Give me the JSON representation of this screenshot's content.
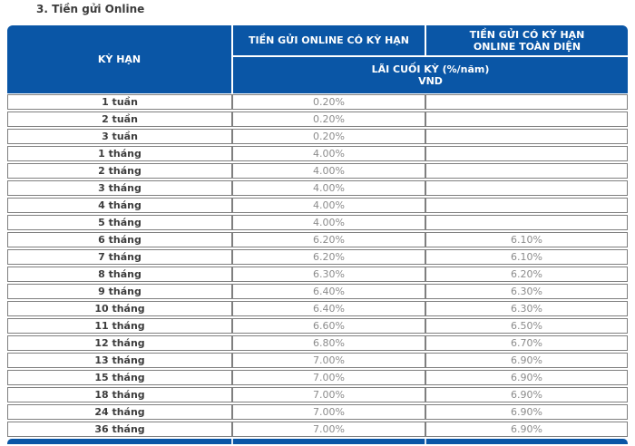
{
  "page_title": "3. Tiền gửi Online",
  "colors": {
    "header_blue": "#0a56a6",
    "border_gray": "#7f7f7f",
    "label_color": "#3d3d3d",
    "value_color": "#8c8c8c",
    "title_color": "#3c3c3c"
  },
  "table": {
    "header": {
      "term": "KỲ HẠN",
      "online_fixed": "TIỀN GỬI ONLINE CÓ KỲ HẠN",
      "toan_dien_line1": "TIỀN GỬI CÓ KỲ HẠN",
      "toan_dien_line2": "ONLINE TOÀN DIỆN",
      "interest_label": "LÃI CUỐI KỲ (%/năm)",
      "currency": "VND"
    },
    "rows": [
      {
        "term": "1 tuần",
        "online": "0.20%",
        "toan_dien": ""
      },
      {
        "term": "2 tuần",
        "online": "0.20%",
        "toan_dien": ""
      },
      {
        "term": "3 tuần",
        "online": "0.20%",
        "toan_dien": ""
      },
      {
        "term": "1 tháng",
        "online": "4.00%",
        "toan_dien": ""
      },
      {
        "term": "2 tháng",
        "online": "4.00%",
        "toan_dien": ""
      },
      {
        "term": "3 tháng",
        "online": "4.00%",
        "toan_dien": ""
      },
      {
        "term": "4 tháng",
        "online": "4.00%",
        "toan_dien": ""
      },
      {
        "term": "5 tháng",
        "online": "4.00%",
        "toan_dien": ""
      },
      {
        "term": "6 tháng",
        "online": "6.20%",
        "toan_dien": "6.10%"
      },
      {
        "term": "7 tháng",
        "online": "6.20%",
        "toan_dien": "6.10%"
      },
      {
        "term": "8 tháng",
        "online": "6.30%",
        "toan_dien": "6.20%"
      },
      {
        "term": "9 tháng",
        "online": "6.40%",
        "toan_dien": "6.30%"
      },
      {
        "term": "10 tháng",
        "online": "6.40%",
        "toan_dien": "6.30%"
      },
      {
        "term": "11 tháng",
        "online": "6.60%",
        "toan_dien": "6.50%"
      },
      {
        "term": "12 tháng",
        "online": "6.80%",
        "toan_dien": "6.70%"
      },
      {
        "term": "13 tháng",
        "online": "7.00%",
        "toan_dien": "6.90%"
      },
      {
        "term": "15 tháng",
        "online": "7.00%",
        "toan_dien": "6.90%"
      },
      {
        "term": "18 tháng",
        "online": "7.00%",
        "toan_dien": "6.90%"
      },
      {
        "term": "24 tháng",
        "online": "7.00%",
        "toan_dien": "6.90%"
      },
      {
        "term": "36 tháng",
        "online": "7.00%",
        "toan_dien": "6.90%"
      }
    ]
  }
}
